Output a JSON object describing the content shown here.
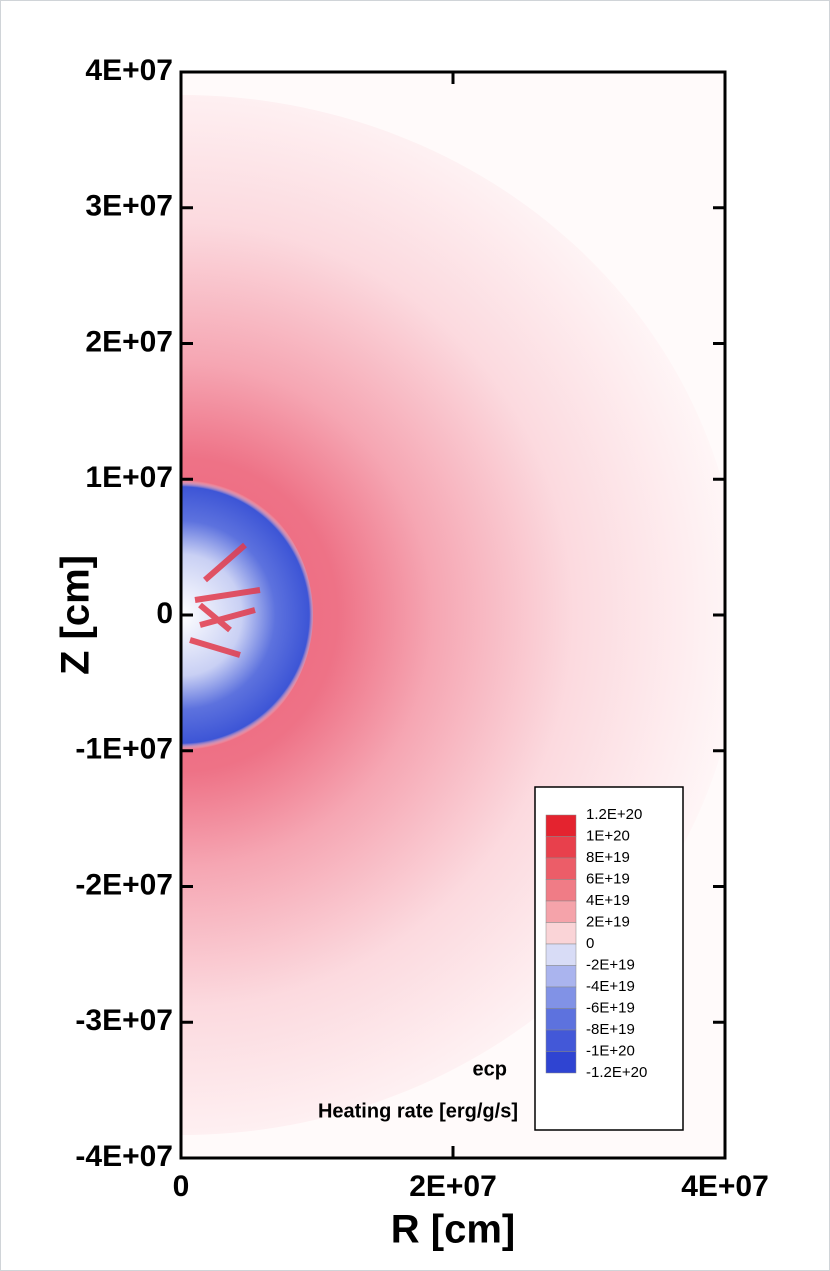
{
  "chart_data": {
    "type": "heatmap",
    "xlabel": "R [cm]",
    "ylabel": "Z [cm]",
    "xlim": [
      0,
      40000000
    ],
    "ylim": [
      -40000000,
      40000000
    ],
    "xticks": [
      0,
      {
        "value": 20000000,
        "label": "2E+07"
      },
      {
        "value": 40000000,
        "label": "4E+07"
      }
    ],
    "yticks": [
      {
        "value": -40000000,
        "label": "-4E+07"
      },
      {
        "value": -30000000,
        "label": "-3E+07"
      },
      {
        "value": -20000000,
        "label": "-2E+07"
      },
      {
        "value": -10000000,
        "label": "-1E+07"
      },
      0,
      {
        "value": 10000000,
        "label": "1E+07"
      },
      {
        "value": 20000000,
        "label": "2E+07"
      },
      {
        "value": 30000000,
        "label": "3E+07"
      },
      {
        "value": 40000000,
        "label": "4E+07"
      }
    ],
    "annotations": [
      "ecp",
      "Heating rate [erg/g/s]"
    ],
    "colorbar": {
      "levels": [
        {
          "value": 1.2e+20,
          "label": "1.2E+20"
        },
        {
          "value": 1e+20,
          "label": "1E+20"
        },
        {
          "value": 8e+19,
          "label": "8E+19"
        },
        {
          "value": 6e+19,
          "label": "6E+19"
        },
        {
          "value": 4e+19,
          "label": "4E+19"
        },
        {
          "value": 2e+19,
          "label": "2E+19"
        },
        0,
        {
          "value": -2e+19,
          "label": "-2E+19"
        },
        {
          "value": -4e+19,
          "label": "-4E+19"
        },
        {
          "value": -6e+19,
          "label": "-6E+19"
        },
        {
          "value": -8e+19,
          "label": "-8E+19"
        },
        {
          "value": -1e+20,
          "label": "-1E+20"
        },
        {
          "value": -1.2e+20,
          "label": "-1.2E+20"
        }
      ],
      "colors": [
        "#e4232f",
        "#e8404c",
        "#ec5d68",
        "#f07c86",
        "#f5a3aa",
        "#fad4d7",
        "#d8dcf6",
        "#aab4ee",
        "#8192e6",
        "#5d72de",
        "#4358d8",
        "#2f44d2"
      ]
    }
  }
}
